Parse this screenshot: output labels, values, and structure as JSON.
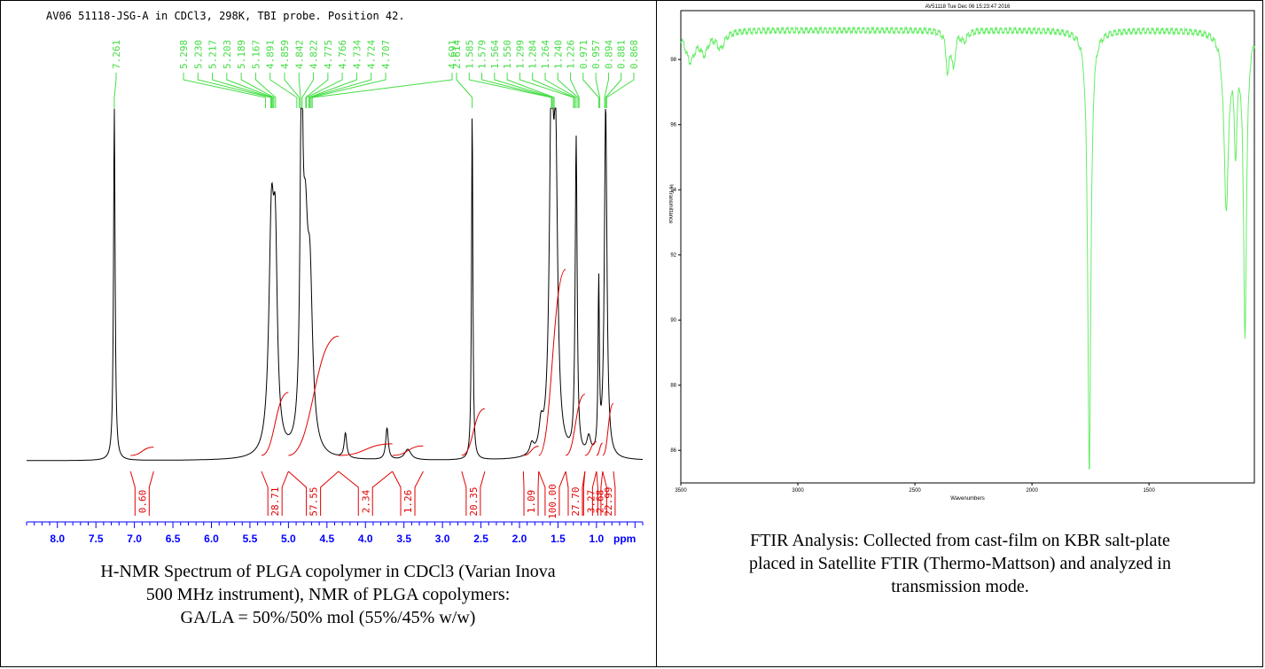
{
  "nmr": {
    "caption_lines": [
      "H-NMR Spectrum of PLGA copolymer in CDCl3 (Varian Inova",
      "500 MHz instrument), NMR of PLGA copolymers:",
      "GA/LA = 50%/50% mol (55%/45% w/w)"
    ],
    "colors": {
      "trace": "#000000",
      "integral": "#e00000",
      "peak_label": "#44dd44",
      "axis": "#0000ff"
    }
  },
  "ftir": {
    "caption_lines": [
      "FTIR Analysis: Collected from cast-film on KBR salt-plate",
      "placed in Satellite FTIR (Thermo-Mattson) and analyzed in",
      "transmission mode."
    ],
    "colors": {
      "trace": "#66ee66",
      "axis": "#000000"
    }
  },
  "chart_data": [
    {
      "type": "line",
      "title": "AV06 51118-JSG-A in CDCl3, 298K, TBI probe.  Position 42.",
      "xlabel": "ppm",
      "xlim": [
        8.4,
        0.4
      ],
      "x_ticks": [
        "8.0",
        "7.5",
        "7.0",
        "6.5",
        "6.0",
        "5.5",
        "5.0",
        "4.5",
        "4.0",
        "3.5",
        "3.0",
        "2.5",
        "2.0",
        "1.5",
        "1.0"
      ],
      "peak_labels": [
        {
          "ppm": 7.261,
          "text": "7.261"
        },
        {
          "ppm": 5.298,
          "text": "5.298"
        },
        {
          "ppm": 5.23,
          "text": "5.230"
        },
        {
          "ppm": 5.217,
          "text": "5.217"
        },
        {
          "ppm": 5.203,
          "text": "5.203"
        },
        {
          "ppm": 5.189,
          "text": "5.189"
        },
        {
          "ppm": 5.167,
          "text": "5.167"
        },
        {
          "ppm": 4.891,
          "text": "4.891"
        },
        {
          "ppm": 4.859,
          "text": "4.859"
        },
        {
          "ppm": 4.842,
          "text": "4.842"
        },
        {
          "ppm": 4.822,
          "text": "4.822"
        },
        {
          "ppm": 4.775,
          "text": "4.775"
        },
        {
          "ppm": 4.766,
          "text": "4.766"
        },
        {
          "ppm": 4.734,
          "text": "4.734"
        },
        {
          "ppm": 4.724,
          "text": "4.724"
        },
        {
          "ppm": 4.707,
          "text": "4.707"
        },
        {
          "ppm": 4.691,
          "text": "4.691"
        },
        {
          "ppm": 2.614,
          "text": "2.614"
        },
        {
          "ppm": 1.585,
          "text": "1.585"
        },
        {
          "ppm": 1.579,
          "text": "1.579"
        },
        {
          "ppm": 1.564,
          "text": "1.564"
        },
        {
          "ppm": 1.55,
          "text": "1.550"
        },
        {
          "ppm": 1.299,
          "text": "1.299"
        },
        {
          "ppm": 1.284,
          "text": "1.284"
        },
        {
          "ppm": 1.264,
          "text": "1.264"
        },
        {
          "ppm": 1.24,
          "text": "1.240"
        },
        {
          "ppm": 1.226,
          "text": "1.226"
        },
        {
          "ppm": 0.971,
          "text": "0.971"
        },
        {
          "ppm": 0.957,
          "text": "0.957"
        },
        {
          "ppm": 0.894,
          "text": "0.894"
        },
        {
          "ppm": 0.881,
          "text": "0.881"
        },
        {
          "ppm": 0.868,
          "text": "0.868"
        }
      ],
      "peaks": [
        {
          "ppm": 7.261,
          "height": 1.0,
          "width": 0.012
        },
        {
          "ppm": 5.22,
          "height": 0.64,
          "width": 0.04
        },
        {
          "ppm": 5.17,
          "height": 0.48,
          "width": 0.03
        },
        {
          "ppm": 4.83,
          "height": 1.0,
          "width": 0.02
        },
        {
          "ppm": 4.78,
          "height": 0.52,
          "width": 0.04
        },
        {
          "ppm": 4.72,
          "height": 0.42,
          "width": 0.04
        },
        {
          "ppm": 4.26,
          "height": 0.07,
          "width": 0.02
        },
        {
          "ppm": 3.72,
          "height": 0.09,
          "width": 0.02
        },
        {
          "ppm": 3.45,
          "height": 0.03,
          "width": 0.05
        },
        {
          "ppm": 2.614,
          "height": 1.0,
          "width": 0.01
        },
        {
          "ppm": 1.84,
          "height": 0.03,
          "width": 0.03
        },
        {
          "ppm": 1.72,
          "height": 0.07,
          "width": 0.03
        },
        {
          "ppm": 1.585,
          "height": 1.0,
          "width": 0.03
        },
        {
          "ppm": 1.53,
          "height": 0.78,
          "width": 0.03
        },
        {
          "ppm": 1.264,
          "height": 0.9,
          "width": 0.015
        },
        {
          "ppm": 1.1,
          "height": 0.05,
          "width": 0.03
        },
        {
          "ppm": 0.971,
          "height": 0.48,
          "width": 0.01
        },
        {
          "ppm": 0.881,
          "height": 1.0,
          "width": 0.02
        }
      ],
      "integrals": [
        {
          "from": 7.05,
          "to": 6.75,
          "value": "0.60"
        },
        {
          "from": 5.35,
          "to": 5.0,
          "value": "28.71"
        },
        {
          "from": 5.0,
          "to": 4.35,
          "value": "57.55"
        },
        {
          "from": 4.35,
          "to": 3.65,
          "value": "2.34"
        },
        {
          "from": 3.65,
          "to": 3.25,
          "value": "1.26"
        },
        {
          "from": 2.75,
          "to": 2.45,
          "value": "20.35"
        },
        {
          "from": 1.95,
          "to": 1.75,
          "value": "1.09"
        },
        {
          "from": 1.75,
          "to": 1.4,
          "value": "100.00"
        },
        {
          "from": 1.4,
          "to": 1.15,
          "value": "27.70"
        },
        {
          "from": 1.15,
          "to": 1.0,
          "value": "3.27"
        },
        {
          "from": 1.0,
          "to": 0.92,
          "value": "2.68"
        },
        {
          "from": 0.92,
          "to": 0.78,
          "value": "22.99"
        }
      ]
    },
    {
      "type": "line",
      "title": "AV51118  Tue Dec 06 15:23:47 2016",
      "xlabel": "Wavenumbers",
      "ylabel": "% Transmittance",
      "xlim": [
        3500,
        1050
      ],
      "ylim": [
        85,
        99.5
      ],
      "x_ticks": [
        3500,
        3000,
        2500,
        2000,
        1500
      ],
      "y_ticks": [
        86,
        88,
        90,
        92,
        94,
        96,
        98
      ],
      "baseline": 98.9,
      "bands": [
        {
          "x": 3460,
          "depth": 0.9,
          "width": 25
        },
        {
          "x": 3400,
          "depth": 0.6,
          "width": 20
        },
        {
          "x": 3330,
          "depth": 0.5,
          "width": 20
        },
        {
          "x": 2360,
          "depth": 1.3,
          "width": 8
        },
        {
          "x": 2335,
          "depth": 1.1,
          "width": 8
        },
        {
          "x": 2290,
          "depth": 0.3,
          "width": 15
        },
        {
          "x": 1755,
          "depth": 13.6,
          "width": 8
        },
        {
          "x": 1170,
          "depth": 5.3,
          "width": 12
        },
        {
          "x": 1130,
          "depth": 3.2,
          "width": 8
        },
        {
          "x": 1090,
          "depth": 9.2,
          "width": 8
        }
      ]
    }
  ]
}
